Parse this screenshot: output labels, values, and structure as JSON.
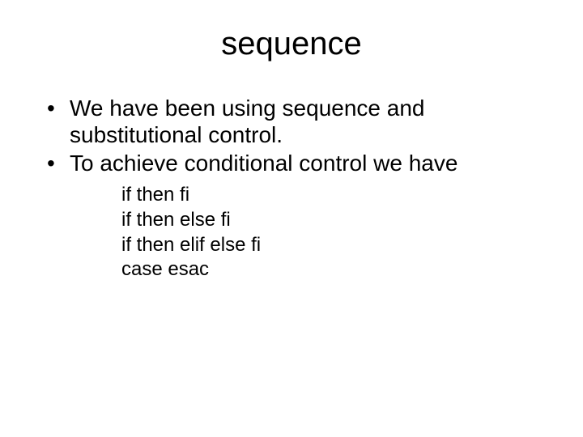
{
  "background_color": "#ffffff",
  "text_color": "#000000",
  "font_family": "Arial",
  "title": {
    "text": "sequence",
    "fontsize": 40,
    "align": "center"
  },
  "bullets": [
    "We have been using sequence and substitutional control.",
    "To achieve conditional control we have"
  ],
  "bullet_fontsize": 28,
  "sublist": [
    "if then fi",
    "if then else fi",
    "if then elif else fi",
    "case esac"
  ],
  "sublist_fontsize": 24
}
